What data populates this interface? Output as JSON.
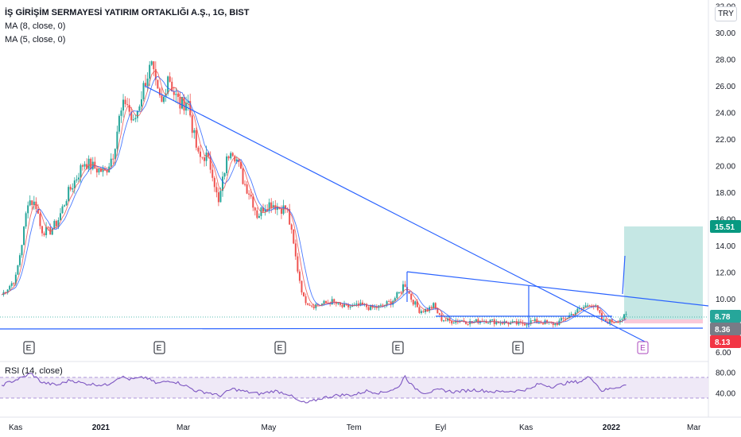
{
  "header": {
    "title": "İŞ GİRİŞİM SERMAYESİ YATIRIM ORTAKLIĞI A.Ş., 1G, BIST",
    "ma8": "MA (8, close, 0)",
    "ma5": "MA (5, close, 0)"
  },
  "currency_button": "TRY",
  "rsi_label": "RSI (14, close)",
  "price_tags": {
    "target": "15.51",
    "current": "8.78",
    "ma": "8.36",
    "stop": "8.13"
  },
  "earnings_marker": "E",
  "colors": {
    "up": "#26a69a",
    "down": "#ef5350",
    "trendline": "#2962ff",
    "ma": "#2962ff",
    "rsi": "#7e57c2",
    "target_zone": "#b2dfdb",
    "stop_zone": "#f8bbd0"
  },
  "chart_data": {
    "type": "candlestick",
    "y_axis": {
      "ticks": [
        "32.00",
        "30.00",
        "28.00",
        "26.00",
        "24.00",
        "22.00",
        "20.00",
        "18.00",
        "16.00",
        "14.00",
        "12.00",
        "10.00",
        "8.00",
        "6.00"
      ],
      "range": [
        5.5,
        32
      ]
    },
    "x_axis": {
      "ticks": [
        "Kas",
        "2021",
        "Mar",
        "May",
        "Tem",
        "Eyl",
        "Kas",
        "2022",
        "Mar"
      ],
      "bold_ticks": [
        "2021",
        "2022"
      ]
    },
    "rsi_axis": {
      "ticks": [
        "80.00",
        "40.00"
      ],
      "band": [
        30,
        70
      ]
    },
    "price_path": [
      [
        "2020-10-22",
        10.3
      ],
      [
        "2020-11-01",
        11.5
      ],
      [
        "2020-11-06",
        14.5
      ],
      [
        "2020-11-10",
        17.5
      ],
      [
        "2020-11-16",
        17.0
      ],
      [
        "2020-11-19",
        15.2
      ],
      [
        "2020-11-25",
        15.0
      ],
      [
        "2020-12-01",
        15.8
      ],
      [
        "2020-12-08",
        17.8
      ],
      [
        "2020-12-15",
        19.2
      ],
      [
        "2020-12-20",
        20.3
      ],
      [
        "2020-12-28",
        19.8
      ],
      [
        "2021-01-04",
        19.5
      ],
      [
        "2021-01-10",
        21.0
      ],
      [
        "2021-01-14",
        23.5
      ],
      [
        "2021-01-19",
        25.0
      ],
      [
        "2021-01-24",
        23.0
      ],
      [
        "2021-01-28",
        24.5
      ],
      [
        "2021-02-02",
        26.5
      ],
      [
        "2021-02-06",
        27.5
      ],
      [
        "2021-02-10",
        25.5
      ],
      [
        "2021-02-14",
        24.5
      ],
      [
        "2021-02-18",
        27.0
      ],
      [
        "2021-02-22",
        25.5
      ],
      [
        "2021-02-27",
        24.5
      ],
      [
        "2021-03-04",
        25.0
      ],
      [
        "2021-03-08",
        22.5
      ],
      [
        "2021-03-12",
        20.5
      ],
      [
        "2021-03-17",
        20.8
      ],
      [
        "2021-03-22",
        19.5
      ],
      [
        "2021-03-26",
        17.0
      ],
      [
        "2021-03-31",
        20.0
      ],
      [
        "2021-04-04",
        21.5
      ],
      [
        "2021-04-08",
        20.5
      ],
      [
        "2021-04-13",
        18.8
      ],
      [
        "2021-04-18",
        17.8
      ],
      [
        "2021-04-23",
        16.2
      ],
      [
        "2021-04-28",
        17.0
      ],
      [
        "2021-05-03",
        17.2
      ],
      [
        "2021-05-09",
        16.8
      ],
      [
        "2021-05-14",
        16.8
      ],
      [
        "2021-05-18",
        14.5
      ],
      [
        "2021-05-22",
        12.0
      ],
      [
        "2021-05-26",
        10.0
      ],
      [
        "2021-06-01",
        9.5
      ],
      [
        "2021-06-08",
        9.6
      ],
      [
        "2021-06-15",
        9.8
      ],
      [
        "2021-06-22",
        9.4
      ],
      [
        "2021-06-30",
        9.4
      ],
      [
        "2021-07-07",
        9.5
      ],
      [
        "2021-07-13",
        9.3
      ],
      [
        "2021-07-20",
        9.4
      ],
      [
        "2021-07-28",
        9.8
      ],
      [
        "2021-08-03",
        10.5
      ],
      [
        "2021-08-06",
        11.2
      ],
      [
        "2021-08-11",
        10.0
      ],
      [
        "2021-08-17",
        9.1
      ],
      [
        "2021-08-23",
        9.2
      ],
      [
        "2021-08-27",
        9.5
      ],
      [
        "2021-09-01",
        8.5
      ],
      [
        "2021-09-08",
        8.3
      ],
      [
        "2021-09-15",
        8.4
      ],
      [
        "2021-09-23",
        8.2
      ],
      [
        "2021-09-30",
        8.4
      ],
      [
        "2021-10-08",
        8.3
      ],
      [
        "2021-10-18",
        8.2
      ],
      [
        "2021-10-28",
        8.1
      ],
      [
        "2021-11-05",
        8.3
      ],
      [
        "2021-11-15",
        8.2
      ],
      [
        "2021-11-22",
        8.1
      ],
      [
        "2021-11-30",
        8.6
      ],
      [
        "2021-12-06",
        9.0
      ],
      [
        "2021-12-13",
        9.4
      ],
      [
        "2021-12-17",
        9.7
      ],
      [
        "2021-12-21",
        9.3
      ],
      [
        "2021-12-26",
        8.3
      ],
      [
        "2022-01-03",
        8.3
      ],
      [
        "2022-01-08",
        8.5
      ],
      [
        "2022-01-13",
        8.8
      ]
    ],
    "rsi_path": [
      [
        "2020-10-22",
        55
      ],
      [
        "2020-11-06",
        70
      ],
      [
        "2020-11-12",
        78
      ],
      [
        "2020-11-20",
        60
      ],
      [
        "2020-12-01",
        55
      ],
      [
        "2020-12-10",
        65
      ],
      [
        "2020-12-20",
        58
      ],
      [
        "2021-01-05",
        55
      ],
      [
        "2021-01-15",
        72
      ],
      [
        "2021-01-22",
        66
      ],
      [
        "2021-02-02",
        70
      ],
      [
        "2021-02-10",
        58
      ],
      [
        "2021-02-20",
        64
      ],
      [
        "2021-03-01",
        56
      ],
      [
        "2021-03-10",
        44
      ],
      [
        "2021-03-20",
        40
      ],
      [
        "2021-03-27",
        34
      ],
      [
        "2021-04-05",
        48
      ],
      [
        "2021-04-15",
        42
      ],
      [
        "2021-04-25",
        38
      ],
      [
        "2021-05-05",
        44
      ],
      [
        "2021-05-15",
        38
      ],
      [
        "2021-05-22",
        24
      ],
      [
        "2021-05-28",
        20
      ],
      [
        "2021-06-08",
        30
      ],
      [
        "2021-06-20",
        36
      ],
      [
        "2021-07-01",
        36
      ],
      [
        "2021-07-10",
        44
      ],
      [
        "2021-07-20",
        40
      ],
      [
        "2021-08-02",
        50
      ],
      [
        "2021-08-06",
        74
      ],
      [
        "2021-08-12",
        52
      ],
      [
        "2021-08-20",
        40
      ],
      [
        "2021-09-01",
        46
      ],
      [
        "2021-09-10",
        42
      ],
      [
        "2021-09-25",
        46
      ],
      [
        "2021-10-10",
        42
      ],
      [
        "2021-10-25",
        44
      ],
      [
        "2021-11-05",
        48
      ],
      [
        "2021-11-10",
        58
      ],
      [
        "2021-11-20",
        52
      ],
      [
        "2021-12-01",
        60
      ],
      [
        "2021-12-10",
        62
      ],
      [
        "2021-12-17",
        72
      ],
      [
        "2021-12-25",
        44
      ],
      [
        "2022-01-03",
        50
      ],
      [
        "2022-01-13",
        56
      ]
    ]
  }
}
